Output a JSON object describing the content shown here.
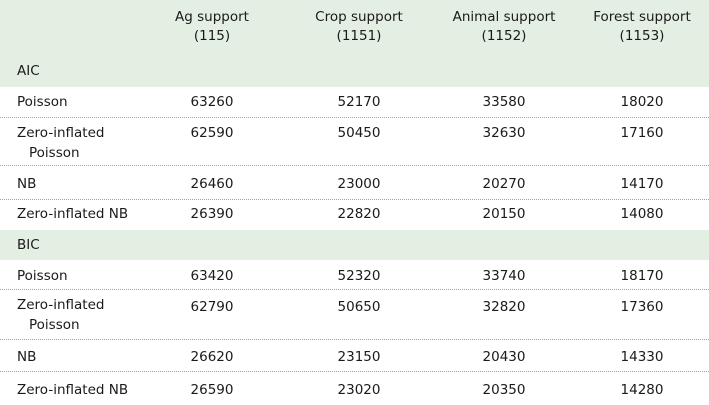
{
  "table": {
    "columns": [
      {
        "name": "Ag support",
        "sub": "(115)"
      },
      {
        "name": "Crop support",
        "sub": "(1151)"
      },
      {
        "name": "Animal support",
        "sub": "(1152)"
      },
      {
        "name": "Forest support",
        "sub": "(1153)"
      }
    ],
    "sections": {
      "aic": {
        "label": "AIC",
        "rows": [
          {
            "label": "Poisson",
            "values": [
              "63260",
              "52170",
              "33580",
              "18020"
            ]
          },
          {
            "label": "Zero-inflated",
            "label2": "Poisson",
            "values": [
              "62590",
              "50450",
              "32630",
              "17160"
            ]
          },
          {
            "label": "NB",
            "values": [
              "26460",
              "23000",
              "20270",
              "14170"
            ]
          },
          {
            "label": "Zero-inflated NB",
            "values": [
              "26390",
              "22820",
              "20150",
              "14080"
            ]
          }
        ]
      },
      "bic": {
        "label": "BIC",
        "rows": [
          {
            "label": "Poisson",
            "values": [
              "63420",
              "52320",
              "33740",
              "18170"
            ]
          },
          {
            "label": "Zero-inflated",
            "label2": "Poisson",
            "values": [
              "62790",
              "50650",
              "32820",
              "17360"
            ]
          },
          {
            "label": "NB",
            "values": [
              "26620",
              "23150",
              "20430",
              "14330"
            ]
          },
          {
            "label": "Zero-inflated NB",
            "values": [
              "26590",
              "23020",
              "20350",
              "14280"
            ]
          }
        ]
      }
    }
  }
}
